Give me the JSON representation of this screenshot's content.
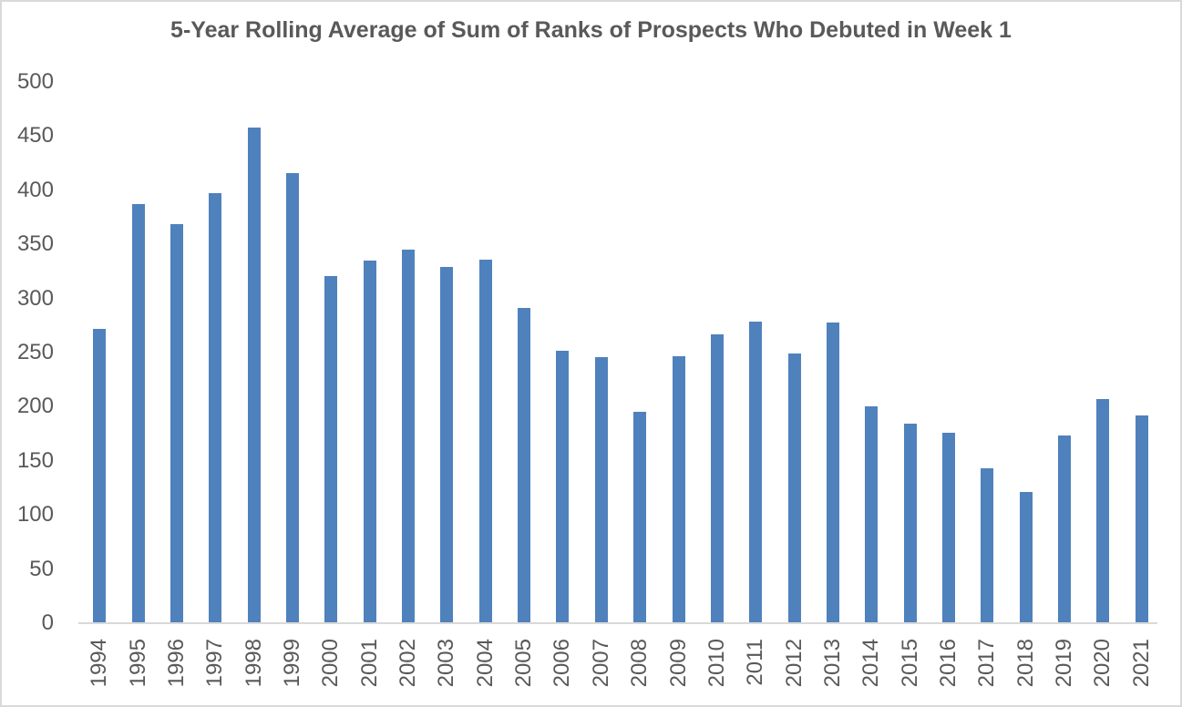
{
  "chart_data": {
    "type": "bar",
    "title": "5-Year Rolling Average of Sum of Ranks of Prospects Who Debuted in Week 1",
    "categories": [
      "1994",
      "1995",
      "1996",
      "1997",
      "1998",
      "1999",
      "2000",
      "2001",
      "2002",
      "2003",
      "2004",
      "2005",
      "2006",
      "2007",
      "2008",
      "2009",
      "2010",
      "2011",
      "2012",
      "2013",
      "2014",
      "2015",
      "2016",
      "2017",
      "2018",
      "2019",
      "2020",
      "2021"
    ],
    "values": [
      272,
      387,
      369,
      397,
      458,
      416,
      321,
      335,
      345,
      329,
      336,
      291,
      252,
      246,
      195,
      247,
      267,
      279,
      249,
      278,
      200,
      184,
      176,
      143,
      121,
      173,
      207,
      192
    ],
    "xlabel": "",
    "ylabel": "",
    "ylim": [
      0,
      500
    ],
    "ytick_step": 50,
    "ytick_labels": [
      "0",
      "50",
      "100",
      "150",
      "200",
      "250",
      "300",
      "350",
      "400",
      "450",
      "500"
    ],
    "grid": false,
    "legend": "none",
    "colors": {
      "bar": "#4f81bd",
      "text": "#595959",
      "axis_line": "#d9d9d9",
      "frame_border": "#d9d9d9",
      "background": "#ffffff"
    }
  }
}
